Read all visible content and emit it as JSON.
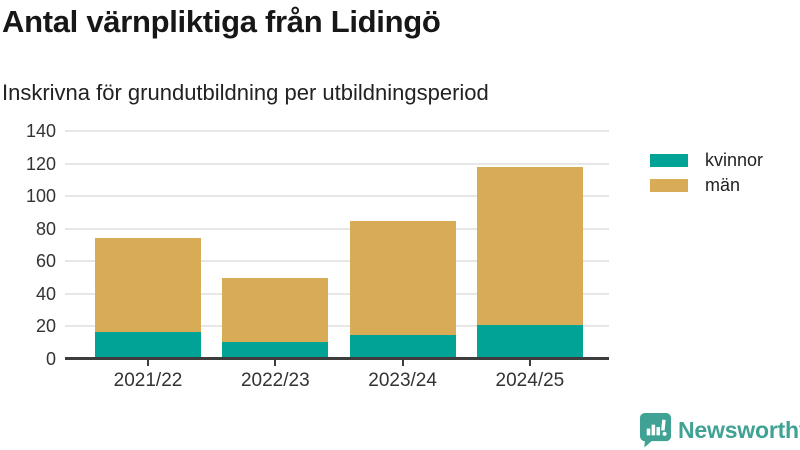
{
  "header": {
    "title": "Antal värnpliktiga från Lidingö",
    "subtitle": "Inskrivna för grundutbildning per utbildningsperiod"
  },
  "chart_data": {
    "type": "bar",
    "stacked": true,
    "title": "Antal värnpliktiga från Lidingö",
    "subtitle": "Inskrivna för grundutbildning per utbildningsperiod",
    "categories": [
      "2021/22",
      "2022/23",
      "2023/24",
      "2024/25"
    ],
    "series": [
      {
        "name": "kvinnor",
        "color": "#00a396",
        "values": [
          16,
          10,
          14,
          20
        ]
      },
      {
        "name": "män",
        "color": "#d8ab57",
        "values": [
          58,
          39,
          70,
          97
        ]
      }
    ],
    "totals": [
      74,
      49,
      84,
      117
    ],
    "xlabel": "",
    "ylabel": "",
    "ylim": [
      0,
      140
    ],
    "yticks": [
      0,
      20,
      40,
      60,
      80,
      100,
      120,
      140
    ],
    "grid": "horizontal",
    "legend_position": "right"
  },
  "colors": {
    "kvinnor": "#00a396",
    "man": "#d8ab57",
    "gridline": "#e7e7e7",
    "axis": "#3d3d3d",
    "brand_teal": "#3fa294"
  },
  "footer": {
    "brand": "Newsworthy"
  }
}
